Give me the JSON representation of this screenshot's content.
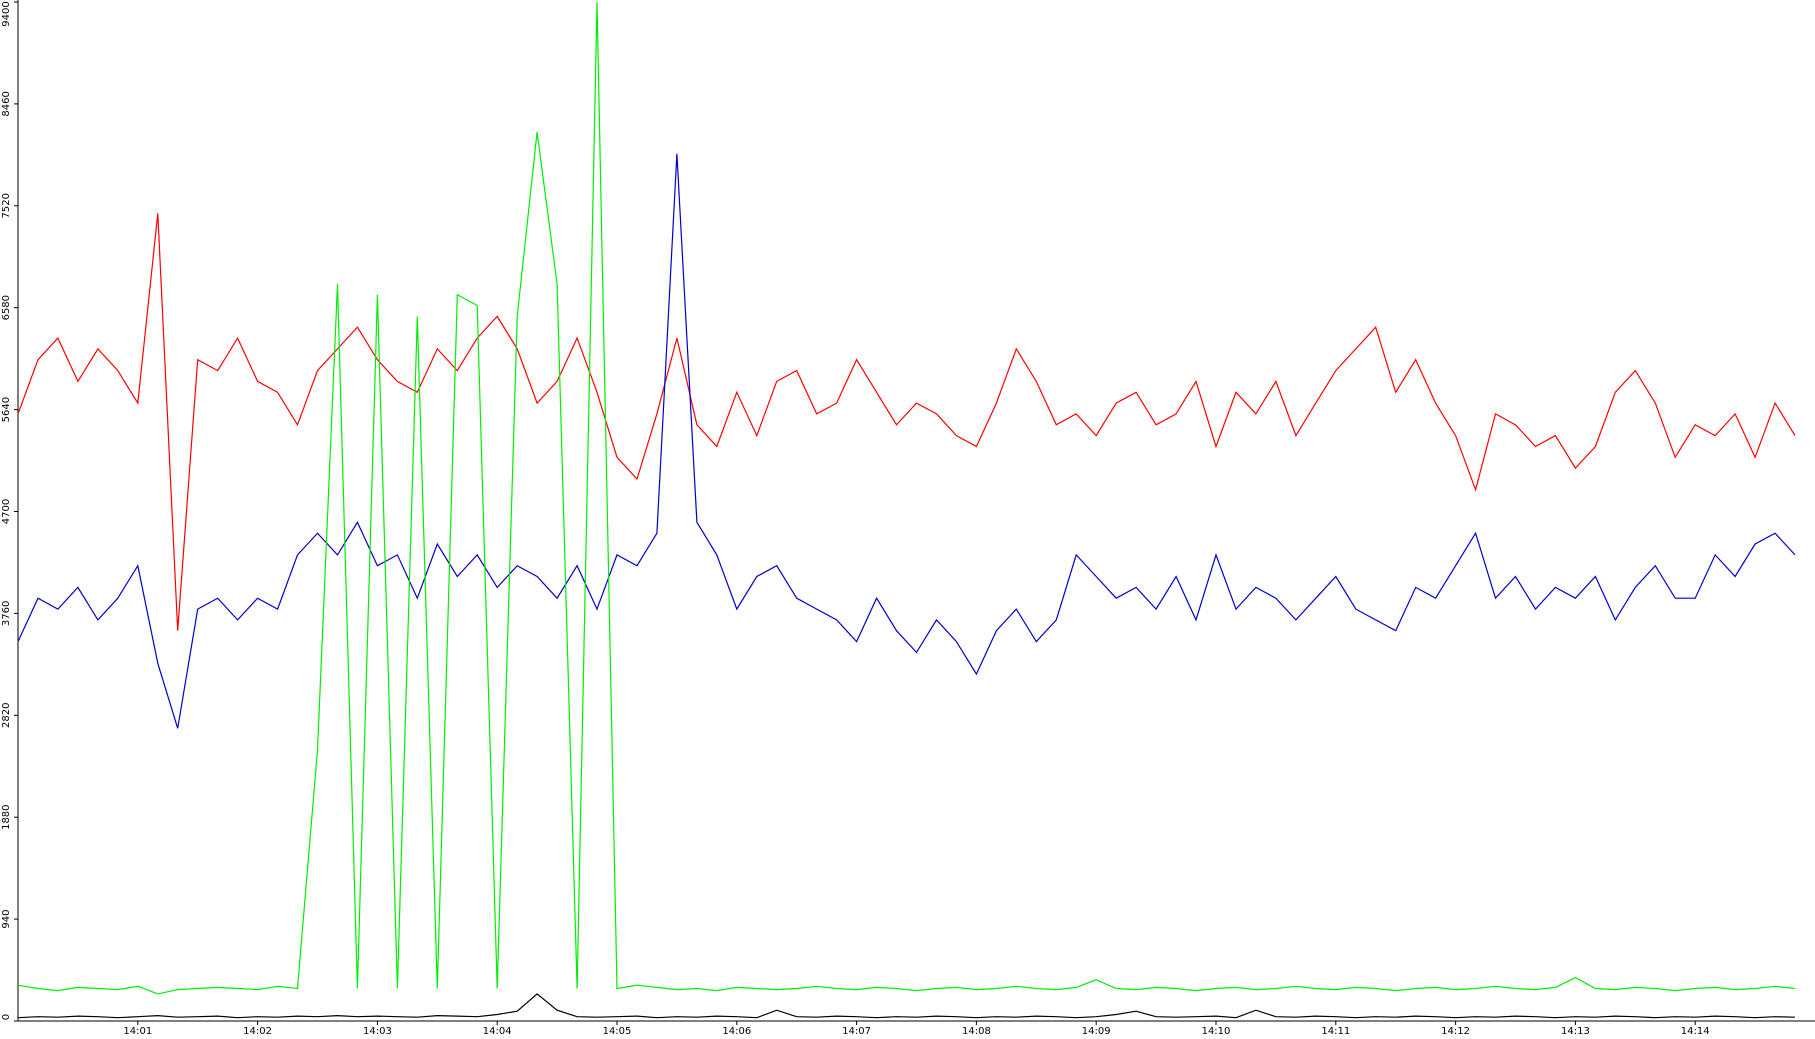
{
  "chart_data": {
    "type": "line",
    "categories": [
      null,
      null,
      null,
      null,
      null,
      null,
      "14:01",
      null,
      null,
      null,
      null,
      null,
      "14:02",
      null,
      null,
      null,
      null,
      null,
      "14:03",
      null,
      null,
      null,
      null,
      null,
      "14:04",
      null,
      null,
      null,
      null,
      null,
      "14:05",
      null,
      null,
      null,
      null,
      null,
      "14:06",
      null,
      null,
      null,
      null,
      null,
      "14:07",
      null,
      null,
      null,
      null,
      null,
      "14:08",
      null,
      null,
      null,
      null,
      null,
      "14:09",
      null,
      null,
      null,
      null,
      null,
      "14:10",
      null,
      null,
      null,
      null,
      null,
      "14:11",
      null,
      null,
      null,
      null,
      null,
      "14:12",
      null,
      null,
      null,
      null,
      null,
      "14:13",
      null,
      null,
      null,
      null,
      null,
      "14:14",
      null,
      null,
      null,
      null,
      null
    ],
    "ylim": [
      0,
      9400
    ],
    "yticks": [
      0,
      940,
      1880,
      2820,
      3760,
      4700,
      5640,
      6580,
      7520,
      8460,
      9400
    ],
    "grid": false,
    "series": [
      {
        "color": "#ff0000",
        "values": [
          5600,
          6100,
          6300,
          5900,
          6200,
          6000,
          5700,
          7450,
          3600,
          6100,
          6000,
          6300,
          5900,
          5800,
          5500,
          6000,
          6200,
          6400,
          6100,
          5900,
          5800,
          6200,
          6000,
          6300,
          6500,
          6200,
          5700,
          5900,
          6300,
          5800,
          5200,
          5000,
          5600,
          6300,
          5500,
          5300,
          5800,
          5400,
          5900,
          6000,
          5600,
          5700,
          6100,
          5800,
          5500,
          5700,
          5600,
          5400,
          5300,
          5700,
          6200,
          5900,
          5500,
          5600,
          5400,
          5700,
          5800,
          5500,
          5600,
          5900,
          5300,
          5800,
          5600,
          5900,
          5400,
          5700,
          6000,
          6200,
          6400,
          5800,
          6100,
          5700,
          5400,
          4900,
          5600,
          5500,
          5300,
          5400,
          5100,
          5300,
          5800,
          6000,
          5700,
          5200,
          5500,
          5400,
          5600,
          5200,
          5700,
          5400
        ]
      },
      {
        "color": "#0000cc",
        "values": [
          3500,
          3900,
          3800,
          4000,
          3700,
          3900,
          4200,
          3300,
          2700,
          3800,
          3900,
          3700,
          3900,
          3800,
          4300,
          4500,
          4300,
          4600,
          4200,
          4300,
          3900,
          4400,
          4100,
          4300,
          4000,
          4200,
          4100,
          3900,
          4200,
          3800,
          4300,
          4200,
          4500,
          8000,
          4600,
          4300,
          3800,
          4100,
          4200,
          3900,
          3800,
          3700,
          3500,
          3900,
          3600,
          3400,
          3700,
          3500,
          3200,
          3600,
          3800,
          3500,
          3700,
          4300,
          4100,
          3900,
          4000,
          3800,
          4100,
          3700,
          4300,
          3800,
          4000,
          3900,
          3700,
          3900,
          4100,
          3800,
          3700,
          3600,
          4000,
          3900,
          4200,
          4500,
          3900,
          4100,
          3800,
          4000,
          3900,
          4100,
          3700,
          4000,
          4200,
          3900,
          3900,
          4300,
          4100,
          4400,
          4500,
          4300
        ]
      },
      {
        "color": "#00ee00",
        "values": [
          330,
          300,
          280,
          310,
          300,
          290,
          320,
          250,
          290,
          300,
          310,
          300,
          290,
          320,
          300,
          2500,
          6800,
          300,
          6700,
          300,
          6500,
          300,
          6700,
          6600,
          300,
          6500,
          8200,
          6800,
          300,
          9400,
          300,
          330,
          310,
          290,
          300,
          280,
          310,
          300,
          290,
          300,
          320,
          300,
          290,
          310,
          300,
          280,
          300,
          310,
          290,
          300,
          320,
          300,
          290,
          310,
          380,
          300,
          290,
          310,
          300,
          280,
          300,
          310,
          290,
          300,
          320,
          300,
          290,
          310,
          300,
          280,
          300,
          310,
          290,
          300,
          320,
          300,
          290,
          310,
          400,
          300,
          290,
          310,
          300,
          280,
          300,
          310,
          290,
          300,
          320,
          300
        ]
      },
      {
        "color": "#000000",
        "values": [
          30,
          40,
          35,
          45,
          40,
          30,
          40,
          50,
          35,
          40,
          45,
          30,
          40,
          35,
          45,
          40,
          50,
          40,
          45,
          40,
          35,
          50,
          45,
          40,
          60,
          90,
          250,
          100,
          40,
          35,
          40,
          45,
          30,
          40,
          35,
          45,
          40,
          30,
          100,
          40,
          35,
          45,
          40,
          30,
          40,
          35,
          45,
          40,
          30,
          40,
          35,
          45,
          40,
          30,
          40,
          60,
          90,
          40,
          35,
          40,
          45,
          30,
          100,
          40,
          35,
          45,
          40,
          30,
          40,
          35,
          45,
          40,
          30,
          40,
          35,
          45,
          40,
          30,
          40,
          35,
          45,
          40,
          30,
          40,
          35,
          45,
          40,
          30,
          40,
          35
        ]
      }
    ]
  }
}
